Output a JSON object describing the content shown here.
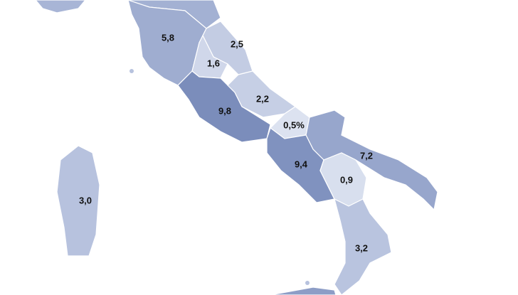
{
  "regions": [
    {
      "value": 5.8,
      "label": "5,8",
      "color": "#9fadd0"
    },
    {
      "value": 2.5,
      "label": "2,5",
      "color": "#c3cce3"
    },
    {
      "value": 1.6,
      "label": "1,6",
      "color": "#d0d7ea"
    },
    {
      "value": 9.8,
      "label": "9,8",
      "color": "#7b8dbb"
    },
    {
      "value": 2.2,
      "label": "2,2",
      "color": "#c6cfe5"
    },
    {
      "value": 0.5,
      "label": "0,5%",
      "color": "#dce2f0"
    },
    {
      "value": 7.2,
      "label": "7,2",
      "color": "#97a6cc"
    },
    {
      "value": 9.4,
      "label": "9,4",
      "color": "#8092bf"
    },
    {
      "value": 0.9,
      "label": "0,9",
      "color": "#d8dfee"
    },
    {
      "value": 3.2,
      "label": "3,2",
      "color": "#b9c4df"
    },
    {
      "value": 3.0,
      "label": "3,0",
      "color": "#b7c2de"
    }
  ]
}
